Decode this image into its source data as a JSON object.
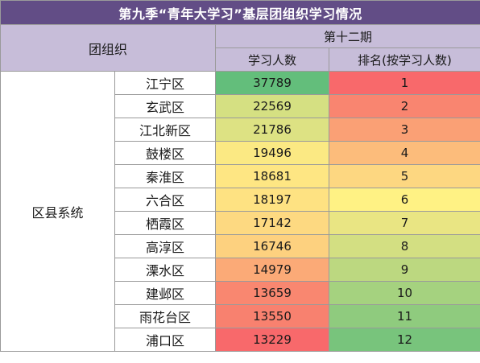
{
  "title": "第九季“青年大学习”基层团组织学习情况",
  "header": {
    "org_label": "团组织",
    "period_label": "第十二期",
    "count_label": "学习人数",
    "rank_label": "排名(按学习人数)"
  },
  "group_label": "区县系统",
  "rows": [
    {
      "name": "江宁区",
      "count": "37789",
      "rank": "1"
    },
    {
      "name": "玄武区",
      "count": "22569",
      "rank": "2"
    },
    {
      "name": "江北新区",
      "count": "21786",
      "rank": "3"
    },
    {
      "name": "鼓楼区",
      "count": "19496",
      "rank": "4"
    },
    {
      "name": "秦淮区",
      "count": "18681",
      "rank": "5"
    },
    {
      "name": "六合区",
      "count": "18197",
      "rank": "6"
    },
    {
      "name": "栖霞区",
      "count": "17142",
      "rank": "7"
    },
    {
      "name": "高淳区",
      "count": "16746",
      "rank": "8"
    },
    {
      "name": "溧水区",
      "count": "14979",
      "rank": "9"
    },
    {
      "name": "建邺区",
      "count": "13659",
      "rank": "10"
    },
    {
      "name": "雨花台区",
      "count": "13550",
      "rank": "11"
    },
    {
      "name": "浦口区",
      "count": "13229",
      "rank": "12"
    }
  ],
  "colors": {
    "title_bg": "#624d86",
    "header_bg": "#c7bdd9",
    "count_cells": [
      "#63be7b",
      "#d5e082",
      "#dde283",
      "#fbe983",
      "#fee683",
      "#fee282",
      "#fdd981",
      "#fdd17f",
      "#fbaa77",
      "#f98770",
      "#f8816f",
      "#f8696b"
    ],
    "rank_cells": [
      "#f8696b",
      "#f98570",
      "#faa075",
      "#fcbc7b",
      "#fdd781",
      "#fff284",
      "#e9e583",
      "#d3df82",
      "#bcd880",
      "#a5d27f",
      "#8fcb7e",
      "#78c47c"
    ]
  }
}
